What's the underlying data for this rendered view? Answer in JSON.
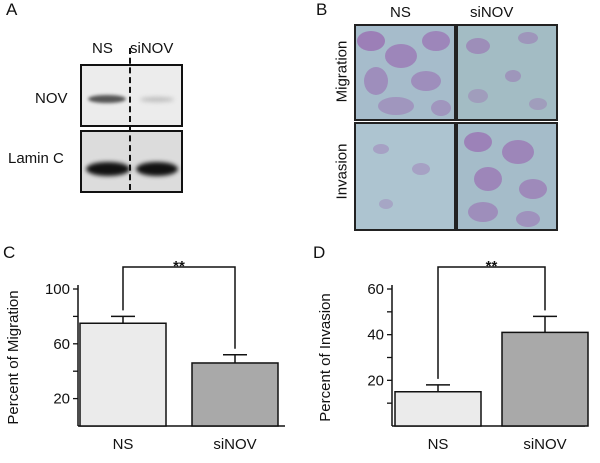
{
  "panels": {
    "A": {
      "letter": "A",
      "lanes": [
        "NS",
        "siNOV"
      ],
      "rows": [
        "NOV",
        "Lamin C"
      ]
    },
    "B": {
      "letter": "B",
      "columns": [
        "NS",
        "siNOV"
      ],
      "rows": [
        "Migration",
        "Invasion"
      ]
    },
    "C": {
      "letter": "C",
      "significance": "**"
    },
    "D": {
      "letter": "D",
      "significance": "**"
    }
  },
  "colors": {
    "ns_bar": "#ebebeb",
    "sinov_bar": "#a9a9a9",
    "stain_bg": "#9db9c6",
    "stain_cell": "#9a6fb2"
  },
  "chart_data": [
    {
      "type": "bar",
      "panel": "C",
      "categories": [
        "NS",
        "siNOV"
      ],
      "values": [
        75,
        46
      ],
      "errors": [
        5,
        6
      ],
      "ylabel": "Percent of Migration",
      "xlabel": "",
      "ylim": [
        0,
        100
      ],
      "yticks": [
        20,
        60,
        100
      ],
      "ytick_labels": [
        "20",
        "60",
        "100"
      ],
      "grid": false
    },
    {
      "type": "bar",
      "panel": "D",
      "categories": [
        "NS",
        "siNOV"
      ],
      "values": [
        15,
        41
      ],
      "errors": [
        3,
        7
      ],
      "ylabel": "Percent of Invasion",
      "xlabel": "",
      "ylim": [
        0,
        60
      ],
      "yticks": [
        20,
        40,
        60
      ],
      "ytick_labels": [
        "20",
        "40",
        "60"
      ],
      "grid": false
    }
  ]
}
